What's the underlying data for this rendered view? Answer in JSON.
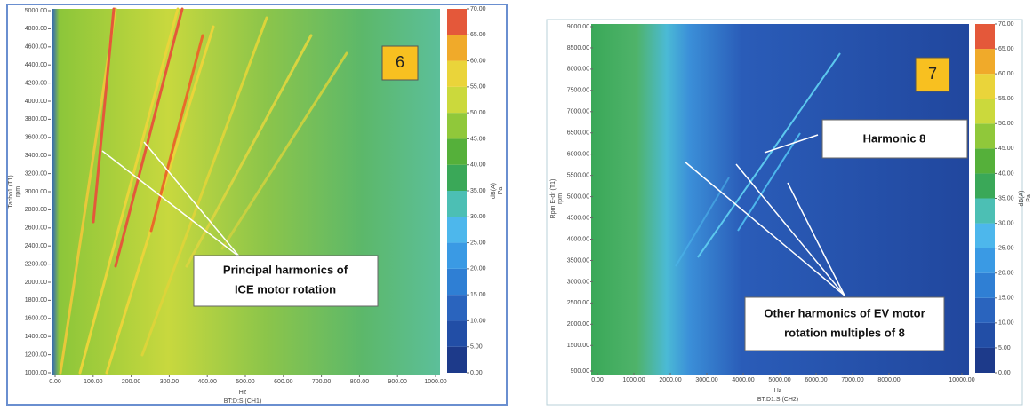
{
  "chart_data": [
    {
      "type": "heatmap",
      "badge": "6",
      "x_label": "Hz",
      "x_sublabel": "BT:D:S (CH1)",
      "y_label": "Tacho1 (T1)",
      "y_unit": "rpm",
      "colorbar_label": "dB(A)",
      "colorbar_unit": "Pa",
      "annotations": [
        {
          "lines": [
            "Principal harmonics of",
            "ICE motor rotation"
          ]
        }
      ],
      "xlim": [
        0,
        1000
      ],
      "xticks": [
        {
          "value": 0,
          "label": "0.00"
        },
        {
          "value": 100,
          "label": "100.00"
        },
        {
          "value": 200,
          "label": "200.00"
        },
        {
          "value": 300,
          "label": "300.00"
        },
        {
          "value": 400,
          "label": "400.00"
        },
        {
          "value": 500,
          "label": "500.00"
        },
        {
          "value": 600,
          "label": "600.00"
        },
        {
          "value": 700,
          "label": "700.00"
        },
        {
          "value": 800,
          "label": "800.00"
        },
        {
          "value": 900,
          "label": "900.00"
        },
        {
          "value": 1000,
          "label": "1000.00"
        }
      ],
      "ylim": [
        1000,
        5000
      ],
      "yticks": [
        {
          "value": 1000,
          "label": "1000.00"
        },
        {
          "value": 1200,
          "label": "1200.00"
        },
        {
          "value": 1400,
          "label": "1400.00"
        },
        {
          "value": 1600,
          "label": "1600.00"
        },
        {
          "value": 1800,
          "label": "1800.00"
        },
        {
          "value": 2000,
          "label": "2000.00"
        },
        {
          "value": 2200,
          "label": "2200.00"
        },
        {
          "value": 2400,
          "label": "2400.00"
        },
        {
          "value": 2600,
          "label": "2600.00"
        },
        {
          "value": 2800,
          "label": "2800.00"
        },
        {
          "value": 3000,
          "label": "3000.00"
        },
        {
          "value": 3200,
          "label": "3200.00"
        },
        {
          "value": 3400,
          "label": "3400.00"
        },
        {
          "value": 3600,
          "label": "3600.00"
        },
        {
          "value": 3800,
          "label": "3800.00"
        },
        {
          "value": 4000,
          "label": "4000.00"
        },
        {
          "value": 4200,
          "label": "4200.00"
        },
        {
          "value": 4400,
          "label": "4400.00"
        },
        {
          "value": 4600,
          "label": "4600.00"
        },
        {
          "value": 4800,
          "label": "4800.00"
        },
        {
          "value": 5000,
          "label": "5000.00"
        }
      ],
      "colorbar": {
        "lim": [
          0,
          70
        ],
        "ticks": [
          {
            "value": 0,
            "label": "0.00"
          },
          {
            "value": 5,
            "label": "5.00"
          },
          {
            "value": 10,
            "label": "10.00"
          },
          {
            "value": 15,
            "label": "15.00"
          },
          {
            "value": 20,
            "label": "20.00"
          },
          {
            "value": 25,
            "label": "25.00"
          },
          {
            "value": 30,
            "label": "30.00"
          },
          {
            "value": 35,
            "label": "35.00"
          },
          {
            "value": 40,
            "label": "40.00"
          },
          {
            "value": 45,
            "label": "45.00"
          },
          {
            "value": 50,
            "label": "50.00"
          },
          {
            "value": 55,
            "label": "55.00"
          },
          {
            "value": 60,
            "label": "60.00"
          },
          {
            "value": 65,
            "label": "65.00"
          },
          {
            "value": 70,
            "label": "70.00"
          }
        ],
        "colors": [
          "#1d3a8a",
          "#224ea6",
          "#2a64be",
          "#2f7fd4",
          "#3a9ae4",
          "#4db7ec",
          "#4cbfb4",
          "#3aa858",
          "#55b03a",
          "#90c83a",
          "#cbd93c",
          "#ead43a",
          "#f0aa2a",
          "#e4583a"
        ]
      }
    },
    {
      "type": "heatmap",
      "badge": "7",
      "x_label": "Hz",
      "x_sublabel": "BT:D1:S (CH2)",
      "y_label": "Rpm E-dr (T1)",
      "y_unit": "rpm",
      "colorbar_label": "dB(A)",
      "colorbar_unit": "Pa",
      "annotations": [
        {
          "lines": [
            "Harmonic 8"
          ]
        },
        {
          "lines": [
            "Other harmonics of EV motor",
            "rotation multiples of 8"
          ]
        }
      ],
      "xlim": [
        0,
        10000
      ],
      "xticks": [
        {
          "value": 0,
          "label": "0.00"
        },
        {
          "value": 1000,
          "label": "1000.00"
        },
        {
          "value": 2000,
          "label": "2000.00"
        },
        {
          "value": 3000,
          "label": "3000.00"
        },
        {
          "value": 4000,
          "label": "4000.00"
        },
        {
          "value": 5000,
          "label": "5000.00"
        },
        {
          "value": 6000,
          "label": "6000.00"
        },
        {
          "value": 7000,
          "label": "7000.00"
        },
        {
          "value": 8000,
          "label": "8000.00"
        },
        {
          "value": 10000,
          "label": "10000.00"
        }
      ],
      "ylim": [
        900,
        9000
      ],
      "yticks": [
        {
          "value": 900,
          "label": "900.00"
        },
        {
          "value": 1500,
          "label": "1500.00"
        },
        {
          "value": 2000,
          "label": "2000.00"
        },
        {
          "value": 2500,
          "label": "2500.00"
        },
        {
          "value": 3000,
          "label": "3000.00"
        },
        {
          "value": 3500,
          "label": "3500.00"
        },
        {
          "value": 4000,
          "label": "4000.00"
        },
        {
          "value": 4500,
          "label": "4500.00"
        },
        {
          "value": 5000,
          "label": "5000.00"
        },
        {
          "value": 5500,
          "label": "5500.00"
        },
        {
          "value": 6000,
          "label": "6000.00"
        },
        {
          "value": 6500,
          "label": "6500.00"
        },
        {
          "value": 7000,
          "label": "7000.00"
        },
        {
          "value": 7500,
          "label": "7500.00"
        },
        {
          "value": 8000,
          "label": "8000.00"
        },
        {
          "value": 8500,
          "label": "8500.00"
        },
        {
          "value": 9000,
          "label": "9000.00"
        }
      ],
      "colorbar": {
        "lim": [
          0,
          70
        ],
        "ticks": [
          {
            "value": 0,
            "label": "0.00"
          },
          {
            "value": 5,
            "label": "5.00"
          },
          {
            "value": 10,
            "label": "10.00"
          },
          {
            "value": 15,
            "label": "15.00"
          },
          {
            "value": 20,
            "label": "20.00"
          },
          {
            "value": 25,
            "label": "25.00"
          },
          {
            "value": 30,
            "label": "30.00"
          },
          {
            "value": 35,
            "label": "35.00"
          },
          {
            "value": 40,
            "label": "40.00"
          },
          {
            "value": 45,
            "label": "45.00"
          },
          {
            "value": 50,
            "label": "50.00"
          },
          {
            "value": 55,
            "label": "55.00"
          },
          {
            "value": 60,
            "label": "60.00"
          },
          {
            "value": 65,
            "label": "65.00"
          },
          {
            "value": 70,
            "label": "70.00"
          }
        ],
        "colors": [
          "#1d3a8a",
          "#224ea6",
          "#2a64be",
          "#2f7fd4",
          "#3a9ae4",
          "#4db7ec",
          "#4cbfb4",
          "#3aa858",
          "#55b03a",
          "#90c83a",
          "#cbd93c",
          "#ead43a",
          "#f0aa2a",
          "#e4583a"
        ]
      }
    }
  ]
}
